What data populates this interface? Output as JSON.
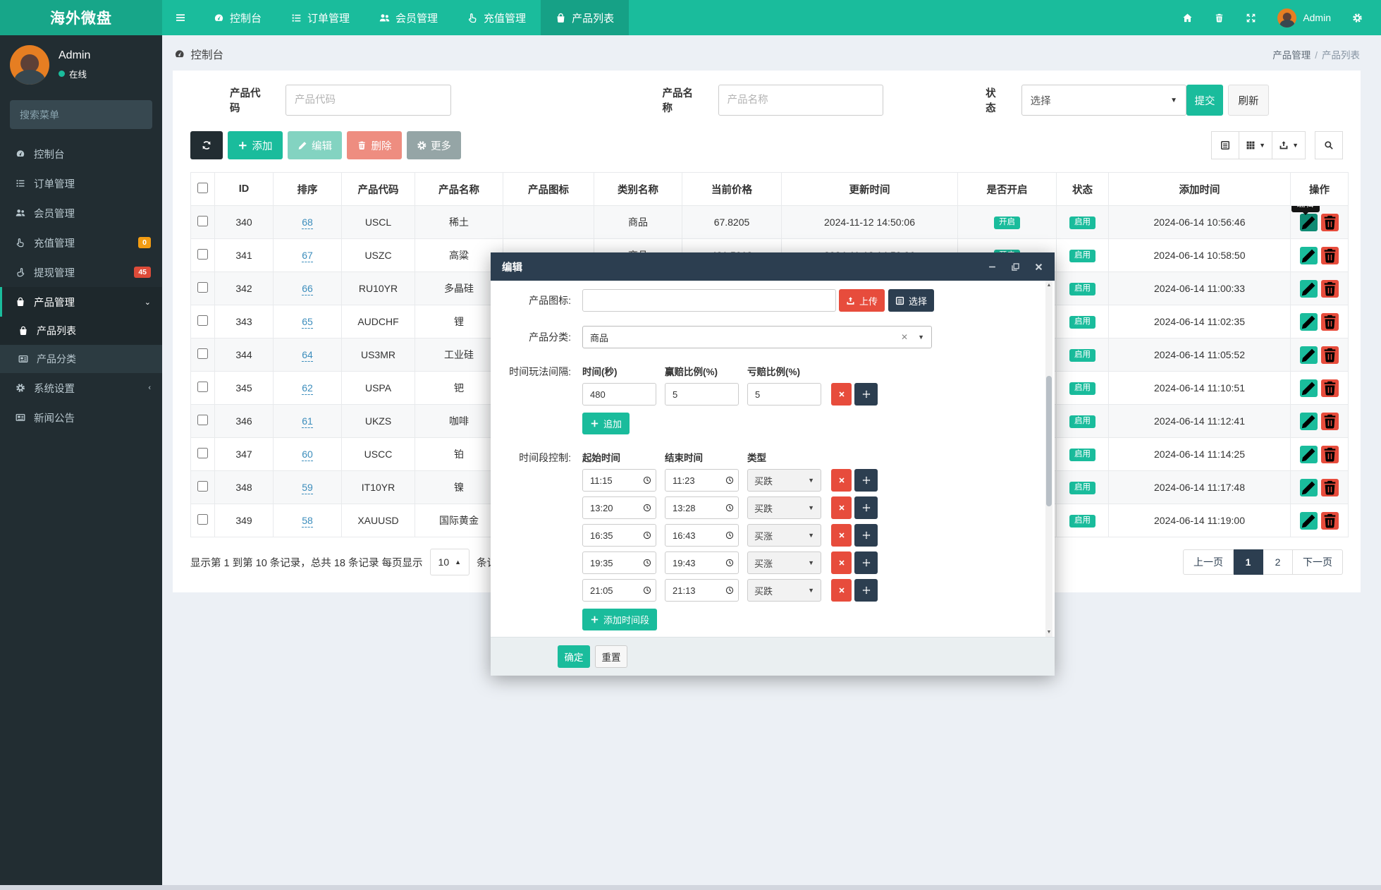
{
  "colors": {
    "accent": "#1abc9c",
    "brand_bg": "#17a689",
    "navy": "#2c3e50",
    "sidebar": "#222d32",
    "red": "#e74c3c",
    "orange": "#f39c12",
    "badge_red": "#dd4b39"
  },
  "navbar": {
    "brand": "海外微盘",
    "items": [
      {
        "label": "控制台",
        "icon": "dashboard-icon",
        "active": false
      },
      {
        "label": "订单管理",
        "icon": "list-icon",
        "active": false
      },
      {
        "label": "会员管理",
        "icon": "users-icon",
        "active": false
      },
      {
        "label": "充值管理",
        "icon": "hand-icon",
        "active": false
      },
      {
        "label": "产品列表",
        "icon": "bag-icon",
        "active": true
      }
    ],
    "right_icons": [
      "home-icon",
      "trash-icon",
      "expand-icon"
    ],
    "user": "Admin",
    "user_gear_icon": "gear-icon"
  },
  "sidebar": {
    "user": {
      "name": "Admin",
      "status": "在线"
    },
    "search_placeholder": "搜索菜单",
    "menu": [
      {
        "label": "控制台",
        "icon": "dashboard-icon"
      },
      {
        "label": "订单管理",
        "icon": "list-icon"
      },
      {
        "label": "会员管理",
        "icon": "users-icon"
      },
      {
        "label": "充值管理",
        "icon": "hand-icon",
        "badge": "0",
        "badge_color": "#f39c12"
      },
      {
        "label": "提现管理",
        "icon": "hand2-icon",
        "badge": "45",
        "badge_color": "#dd4b39"
      },
      {
        "label": "产品管理",
        "icon": "bag-icon",
        "active": true,
        "expanded": true,
        "children": [
          {
            "label": "产品列表",
            "icon": "bag-icon",
            "active": true
          },
          {
            "label": "产品分类",
            "icon": "news-icon",
            "active": false
          }
        ]
      },
      {
        "label": "系统设置",
        "icon": "gear-icon",
        "chevron": "left"
      },
      {
        "label": "新闻公告",
        "icon": "news-icon"
      }
    ]
  },
  "page": {
    "title": "控制台",
    "breadcrumb": [
      "产品管理",
      "产品列表"
    ]
  },
  "filters": {
    "code_label": "产品代码",
    "code_placeholder": "产品代码",
    "name_label": "产品名称",
    "name_placeholder": "产品名称",
    "status_label": "状态",
    "status_value": "选择",
    "submit": "提交",
    "refresh": "刷新"
  },
  "toolbar": {
    "add": "添加",
    "edit": "编辑",
    "delete": "删除",
    "more": "更多"
  },
  "table": {
    "columns": [
      "ID",
      "排序",
      "产品代码",
      "产品名称",
      "产品图标",
      "类别名称",
      "当前价格",
      "更新时间",
      "是否开启",
      "状态",
      "添加时间",
      "操作"
    ],
    "rows": [
      {
        "id": "340",
        "sort": "68",
        "code": "USCL",
        "name": "稀土",
        "category": "商品",
        "price": "67.8205",
        "updated": "2024-11-12 14:50:06",
        "open": "开启",
        "status": "启用",
        "added": "2024-06-14 10:56:46"
      },
      {
        "id": "341",
        "sort": "67",
        "code": "USZC",
        "name": "高粱",
        "category": "商品",
        "price": "431.5012",
        "updated": "2024-11-12 14:50:06",
        "open": "开启",
        "status": "启用",
        "added": "2024-06-14 10:58:50"
      },
      {
        "id": "342",
        "sort": "66",
        "code": "RU10YR",
        "name": "多晶硅",
        "category": "",
        "price": "",
        "updated": "",
        "open": "",
        "status": "启用",
        "added": "2024-06-14 11:00:33"
      },
      {
        "id": "343",
        "sort": "65",
        "code": "AUDCHF",
        "name": "锂",
        "category": "",
        "price": "",
        "updated": "",
        "open": "",
        "status": "启用",
        "added": "2024-06-14 11:02:35"
      },
      {
        "id": "344",
        "sort": "64",
        "code": "US3MR",
        "name": "工业硅",
        "category": "",
        "price": "",
        "updated": "",
        "open": "",
        "status": "启用",
        "added": "2024-06-14 11:05:52"
      },
      {
        "id": "345",
        "sort": "62",
        "code": "USPA",
        "name": "钯",
        "category": "",
        "price": "",
        "updated": "",
        "open": "",
        "status": "启用",
        "added": "2024-06-14 11:10:51"
      },
      {
        "id": "346",
        "sort": "61",
        "code": "UKZS",
        "name": "咖啡",
        "category": "",
        "price": "",
        "updated": "",
        "open": "",
        "status": "启用",
        "added": "2024-06-14 11:12:41"
      },
      {
        "id": "347",
        "sort": "60",
        "code": "USCC",
        "name": "铂",
        "category": "",
        "price": "",
        "updated": "",
        "open": "",
        "status": "启用",
        "added": "2024-06-14 11:14:25"
      },
      {
        "id": "348",
        "sort": "59",
        "code": "IT10YR",
        "name": "镍",
        "category": "",
        "price": "",
        "updated": "",
        "open": "",
        "status": "启用",
        "added": "2024-06-14 11:17:48"
      },
      {
        "id": "349",
        "sort": "58",
        "code": "XAUUSD",
        "name": "国际黄金",
        "category": "",
        "price": "",
        "updated": "",
        "open": "",
        "status": "启用",
        "added": "2024-06-14 11:19:00"
      }
    ]
  },
  "table_footer": {
    "info_prefix": "显示第 1 到第 10 条记录，总共 18 条记录 每页显示",
    "page_size": "10",
    "info_suffix": "条记录"
  },
  "pagination": {
    "prev": "上一页",
    "pages": [
      "1",
      "2"
    ],
    "active": "1",
    "next": "下一页"
  },
  "tooltip": "编辑",
  "modal": {
    "title": "编辑",
    "icon_label": "产品图标:",
    "upload": "上传",
    "choose": "选择",
    "category_label": "产品分类:",
    "category_value": "商品",
    "interval_label": "时间玩法间隔:",
    "interval_headers": [
      "时间(秒)",
      "赢赔比例(%)",
      "亏赔比例(%)"
    ],
    "interval_values": [
      "480",
      "5",
      "5"
    ],
    "append": "追加",
    "period_label": "时间段控制:",
    "period_headers": [
      "起始时间",
      "结束时间",
      "类型"
    ],
    "periods": [
      {
        "start": "11:15",
        "end": "11:23",
        "type": "买跌"
      },
      {
        "start": "13:20",
        "end": "13:28",
        "type": "买跌"
      },
      {
        "start": "16:35",
        "end": "16:43",
        "type": "买涨"
      },
      {
        "start": "19:35",
        "end": "19:43",
        "type": "买涨"
      },
      {
        "start": "21:05",
        "end": "21:13",
        "type": "买跌"
      }
    ],
    "add_period": "添加时间段",
    "ok": "确定",
    "reset": "重置"
  }
}
